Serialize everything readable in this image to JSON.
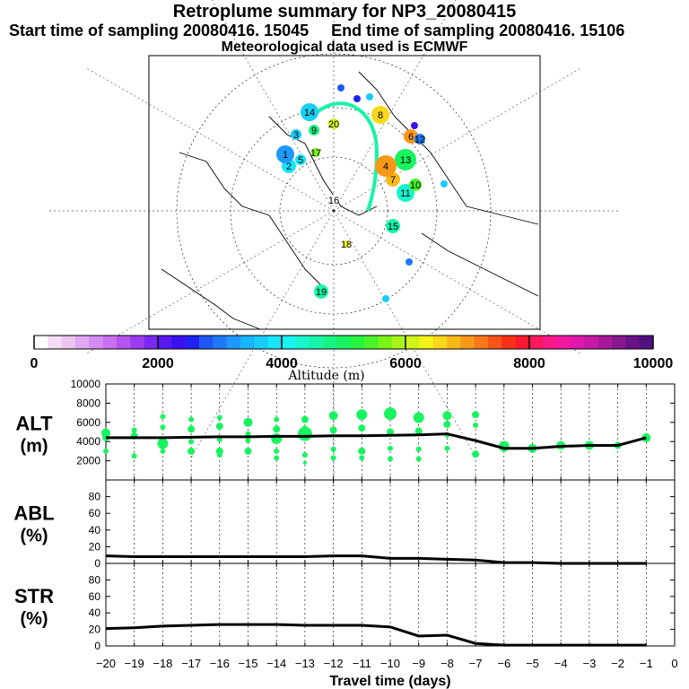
{
  "header": {
    "title": "Retroplume summary for NP3_20080415",
    "line2": "Start time of sampling 20080416. 15045     End time of sampling 20080416. 15106",
    "line3": "Meteorological data used is ECMWF"
  },
  "colorbar": {
    "colors": [
      "#ffffff",
      "#f4dcf4",
      "#ecc4f0",
      "#e0a8f0",
      "#d48cf0",
      "#c870f0",
      "#b454f0",
      "#9c3cf0",
      "#7c28f0",
      "#5818f0",
      "#3a10f0",
      "#2020f0",
      "#1e58f4",
      "#1e78f8",
      "#1e98fa",
      "#18b4fc",
      "#18ccfc",
      "#18e4fc",
      "#18f4f0",
      "#18f4cc",
      "#18f4a8",
      "#18f484",
      "#18f460",
      "#28f440",
      "#48f428",
      "#78f418",
      "#a8f418",
      "#d0f418",
      "#f0f418",
      "#f8d818",
      "#f8b818",
      "#f89818",
      "#f87818",
      "#f85418",
      "#f83018",
      "#f81830",
      "#f81860",
      "#f81888",
      "#f018a0",
      "#e018b0",
      "#c818a8",
      "#a8189c",
      "#881890",
      "#681488",
      "#501080"
    ],
    "tick_labels": [
      "0",
      "2000",
      "4000",
      "6000",
      "8000",
      "10000"
    ],
    "tick_values": [
      0,
      2000,
      4000,
      6000,
      8000,
      10000
    ],
    "axis_label": "Altitude (m)"
  },
  "map": {
    "point_labels": [
      "14",
      "9",
      "17",
      "20",
      "8",
      "6",
      "12",
      "19",
      "2",
      "1",
      "5",
      "3",
      "13",
      "11",
      "7",
      "10",
      "15",
      "16",
      "18",
      "4"
    ]
  },
  "chart_data": [
    {
      "type": "line",
      "name": "ALT",
      "ylabel_line1": "ALT",
      "ylabel_line2": "(m)",
      "ylim": [
        0,
        10000
      ],
      "yticks": [
        0,
        2000,
        4000,
        6000,
        8000,
        10000
      ],
      "ytick_labels": [
        "",
        "2000",
        "4000",
        "6000",
        "8000",
        "10000"
      ],
      "x": [
        -20,
        -19,
        -18,
        -17,
        -16,
        -15,
        -14,
        -13,
        -12,
        -11,
        -10,
        -9,
        -8,
        -7,
        -6,
        -5,
        -4,
        -3,
        -2,
        -1
      ],
      "values": [
        4400,
        4400,
        4400,
        4450,
        4500,
        4500,
        4550,
        4550,
        4600,
        4600,
        4650,
        4700,
        4800,
        4100,
        3300,
        3300,
        3500,
        3600,
        3600,
        4400
      ],
      "points": [
        {
          "x": -20,
          "y": 4900,
          "s": 5
        },
        {
          "x": -20,
          "y": 4400,
          "s": 4
        },
        {
          "x": -20,
          "y": 3000,
          "s": 3
        },
        {
          "x": -19,
          "y": 5200,
          "s": 3
        },
        {
          "x": -19,
          "y": 4600,
          "s": 4
        },
        {
          "x": -19,
          "y": 2500,
          "s": 3
        },
        {
          "x": -18,
          "y": 6600,
          "s": 3
        },
        {
          "x": -18,
          "y": 5500,
          "s": 3
        },
        {
          "x": -18,
          "y": 3800,
          "s": 6
        },
        {
          "x": -18,
          "y": 3000,
          "s": 3
        },
        {
          "x": -17,
          "y": 6300,
          "s": 3
        },
        {
          "x": -17,
          "y": 5300,
          "s": 4
        },
        {
          "x": -17,
          "y": 4000,
          "s": 3
        },
        {
          "x": -17,
          "y": 3000,
          "s": 4
        },
        {
          "x": -16,
          "y": 6500,
          "s": 3
        },
        {
          "x": -16,
          "y": 5600,
          "s": 4
        },
        {
          "x": -16,
          "y": 4200,
          "s": 3
        },
        {
          "x": -16,
          "y": 3000,
          "s": 4
        },
        {
          "x": -16,
          "y": 2600,
          "s": 3
        },
        {
          "x": -15,
          "y": 6000,
          "s": 5
        },
        {
          "x": -15,
          "y": 4800,
          "s": 3
        },
        {
          "x": -15,
          "y": 4100,
          "s": 3
        },
        {
          "x": -15,
          "y": 3000,
          "s": 4
        },
        {
          "x": -14,
          "y": 6300,
          "s": 3
        },
        {
          "x": -14,
          "y": 5300,
          "s": 4
        },
        {
          "x": -14,
          "y": 4300,
          "s": 6
        },
        {
          "x": -14,
          "y": 3000,
          "s": 3
        },
        {
          "x": -14,
          "y": 2300,
          "s": 3
        },
        {
          "x": -13,
          "y": 6300,
          "s": 4
        },
        {
          "x": -13,
          "y": 5400,
          "s": 3
        },
        {
          "x": -13,
          "y": 4800,
          "s": 8
        },
        {
          "x": -13,
          "y": 2600,
          "s": 3
        },
        {
          "x": -13,
          "y": 1800,
          "s": 2
        },
        {
          "x": -12,
          "y": 6700,
          "s": 5
        },
        {
          "x": -12,
          "y": 5200,
          "s": 4
        },
        {
          "x": -12,
          "y": 3200,
          "s": 3
        },
        {
          "x": -12,
          "y": 2300,
          "s": 3
        },
        {
          "x": -11,
          "y": 6800,
          "s": 6
        },
        {
          "x": -11,
          "y": 5400,
          "s": 4
        },
        {
          "x": -11,
          "y": 3000,
          "s": 4
        },
        {
          "x": -11,
          "y": 2300,
          "s": 3
        },
        {
          "x": -10,
          "y": 6900,
          "s": 7
        },
        {
          "x": -10,
          "y": 5000,
          "s": 4
        },
        {
          "x": -10,
          "y": 3300,
          "s": 3
        },
        {
          "x": -10,
          "y": 2200,
          "s": 3
        },
        {
          "x": -9,
          "y": 6500,
          "s": 6
        },
        {
          "x": -9,
          "y": 5100,
          "s": 4
        },
        {
          "x": -9,
          "y": 3200,
          "s": 3
        },
        {
          "x": -9,
          "y": 2200,
          "s": 3
        },
        {
          "x": -8,
          "y": 6700,
          "s": 5
        },
        {
          "x": -8,
          "y": 5800,
          "s": 4
        },
        {
          "x": -8,
          "y": 4700,
          "s": 3
        },
        {
          "x": -8,
          "y": 3300,
          "s": 3
        },
        {
          "x": -7,
          "y": 6800,
          "s": 4
        },
        {
          "x": -7,
          "y": 5700,
          "s": 3
        },
        {
          "x": -7,
          "y": 2700,
          "s": 4
        },
        {
          "x": -6,
          "y": 3500,
          "s": 6
        },
        {
          "x": -6,
          "y": 3300,
          "s": 4
        },
        {
          "x": -5,
          "y": 3300,
          "s": 5
        },
        {
          "x": -4,
          "y": 3600,
          "s": 5
        },
        {
          "x": -3,
          "y": 3600,
          "s": 5
        },
        {
          "x": -2,
          "y": 3600,
          "s": 4
        },
        {
          "x": -1,
          "y": 4400,
          "s": 5
        }
      ]
    },
    {
      "type": "line",
      "name": "ABL",
      "ylabel_line1": "ABL",
      "ylabel_line2": "(%)",
      "ylim": [
        0,
        100
      ],
      "yticks": [
        0,
        20,
        40,
        60,
        80
      ],
      "ytick_labels": [
        "0",
        "20",
        "40",
        "60",
        "80"
      ],
      "x": [
        -20,
        -19,
        -18,
        -17,
        -16,
        -15,
        -14,
        -13,
        -12,
        -11,
        -10,
        -9,
        -8,
        -7,
        -6,
        -5,
        -4,
        -3,
        -2,
        -1
      ],
      "values": [
        9,
        8,
        8,
        8,
        8,
        8,
        8,
        8,
        9,
        9,
        6,
        6,
        5,
        4,
        1,
        1,
        0,
        0,
        0,
        0
      ]
    },
    {
      "type": "line",
      "name": "STR",
      "ylabel_line1": "STR",
      "ylabel_line2": "(%)",
      "ylim": [
        0,
        100
      ],
      "yticks": [
        0,
        20,
        40,
        60,
        80
      ],
      "ytick_labels": [
        "0",
        "20",
        "40",
        "60",
        "80"
      ],
      "x": [
        -20,
        -19,
        -18,
        -17,
        -16,
        -15,
        -14,
        -13,
        -12,
        -11,
        -10,
        -9,
        -8,
        -7,
        -6,
        -5,
        -4,
        -3,
        -2,
        -1
      ],
      "values": [
        21,
        22,
        24,
        25,
        26,
        26,
        26,
        25,
        25,
        25,
        23,
        12,
        13,
        3,
        1,
        1,
        1,
        1,
        1,
        1
      ],
      "xlabel": "Travel time (days)",
      "xticks": [
        -20,
        -19,
        -18,
        -17,
        -16,
        -15,
        -14,
        -13,
        -12,
        -11,
        -10,
        -9,
        -8,
        -7,
        -6,
        -5,
        -4,
        -3,
        -2,
        -1,
        0
      ],
      "xtick_labels": [
        "−20",
        "−19",
        "−18",
        "−17",
        "−16",
        "−15",
        "−14",
        "−13",
        "−12",
        "−11",
        "−10",
        "−9",
        "−8",
        "−7",
        "−6",
        "−5",
        "−4",
        "−3",
        "−2",
        "−1",
        "0"
      ]
    }
  ]
}
